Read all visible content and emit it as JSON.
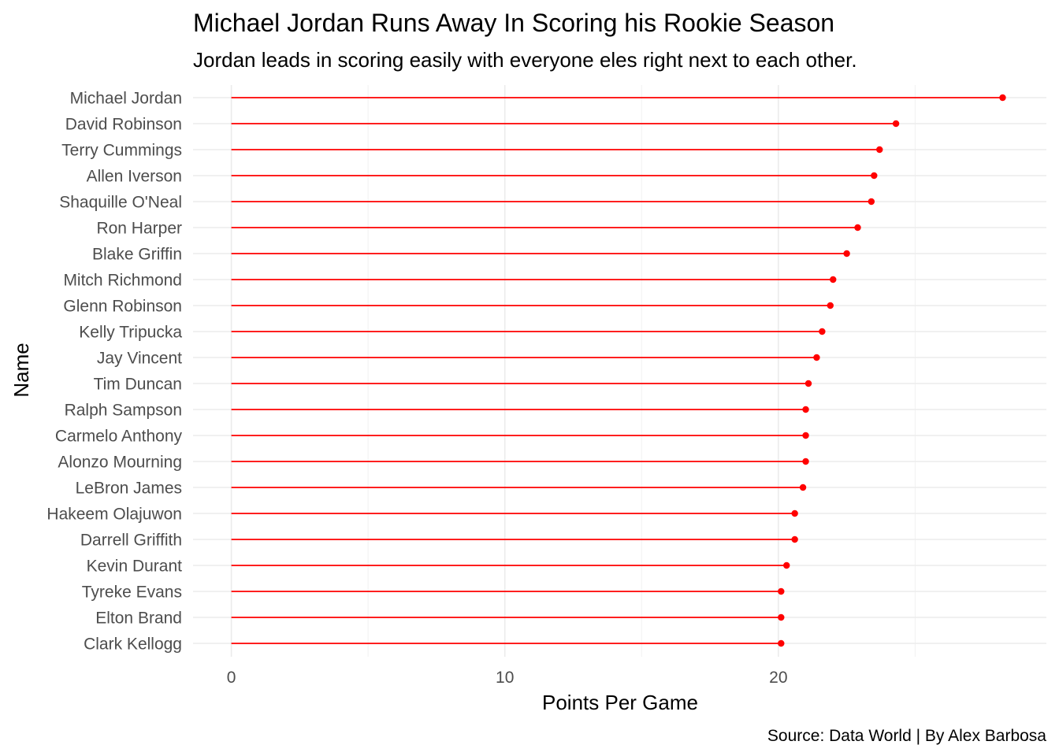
{
  "chart_data": {
    "type": "lollipop",
    "title": "Michael Jordan Runs Away In Scoring his Rookie Season",
    "subtitle": "Jordan leads in scoring easily with everyone eles right next to each other.",
    "xlabel": "Points Per Game",
    "ylabel": "Name",
    "caption": "Source: Data World | By Alex Barbosa",
    "xlim": [
      -1.4,
      29.8
    ],
    "xticks": [
      0,
      10,
      20
    ],
    "grid": true,
    "color": "#ff0000",
    "categories": [
      "Michael Jordan",
      "David Robinson",
      "Terry Cummings",
      "Allen Iverson",
      "Shaquille O'Neal",
      "Ron Harper",
      "Blake Griffin",
      "Mitch Richmond",
      "Glenn Robinson",
      "Kelly Tripucka",
      "Jay Vincent",
      "Tim Duncan",
      "Ralph Sampson",
      "Carmelo Anthony",
      "Alonzo Mourning",
      "LeBron James",
      "Hakeem Olajuwon",
      "Darrell Griffith",
      "Kevin Durant",
      "Tyreke Evans",
      "Elton Brand",
      "Clark Kellogg"
    ],
    "values": [
      28.2,
      24.3,
      23.7,
      23.5,
      23.4,
      22.9,
      22.5,
      22.0,
      21.9,
      21.6,
      21.4,
      21.1,
      21.0,
      21.0,
      21.0,
      20.9,
      20.6,
      20.6,
      20.3,
      20.1,
      20.1,
      20.1
    ]
  }
}
